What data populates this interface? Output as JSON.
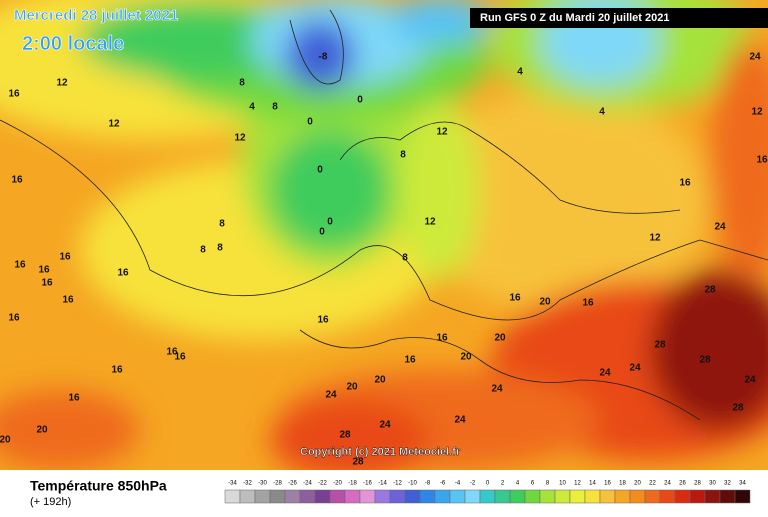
{
  "header": {
    "title": "Mercredi 28 juillet 2021",
    "subtitle": "2:00 locale",
    "run": "Run GFS 0 Z du Mardi 20 juillet 2021"
  },
  "copyright": "Copyright (c) 2021 Meteociel.fr",
  "footer": {
    "title": "Température 850hPa",
    "lead": "(+ 192h)"
  },
  "legend": {
    "labels": [
      -34,
      -32,
      -30,
      -28,
      -26,
      -24,
      -22,
      -20,
      -18,
      -16,
      -14,
      -12,
      -10,
      -8,
      -6,
      -4,
      -2,
      0,
      2,
      4,
      6,
      8,
      10,
      12,
      14,
      16,
      18,
      20,
      22,
      24,
      26,
      28,
      30,
      32,
      34
    ],
    "colors": [
      "#d9d9d9",
      "#bdbdbd",
      "#a3a3a3",
      "#8a8a8a",
      "#9e7fa8",
      "#8e5f9e",
      "#7a3f91",
      "#b84fa8",
      "#d56cc4",
      "#e393d9",
      "#9b78e0",
      "#6d63d8",
      "#3f5fd8",
      "#2f86e6",
      "#3aa6f0",
      "#58c3f5",
      "#7fd8f7",
      "#36c9c9",
      "#37c98f",
      "#40cc5c",
      "#6fd83f",
      "#a6e23a",
      "#cdea3a",
      "#e9ef3a",
      "#f7e23a",
      "#f7c23a",
      "#f5a623",
      "#f38b1f",
      "#ef6a1b",
      "#e84a17",
      "#d92b14",
      "#b81a12",
      "#8e120e",
      "#5f0c0a",
      "#300606"
    ]
  },
  "map": {
    "labels": [
      -8,
      0,
      0,
      4,
      8,
      8,
      12,
      16,
      12,
      12,
      8,
      8,
      8,
      0,
      0,
      0,
      8,
      12,
      12,
      8,
      12,
      16,
      4,
      4,
      12,
      24,
      16,
      16,
      16,
      16,
      16,
      16,
      16,
      16,
      16,
      16,
      16,
      16,
      16,
      16,
      20,
      20,
      24,
      20,
      20,
      16,
      16,
      20,
      16,
      20,
      16,
      24,
      28,
      28,
      24,
      24,
      28,
      28,
      24,
      24,
      24,
      28,
      28,
      20,
      24
    ]
  }
}
